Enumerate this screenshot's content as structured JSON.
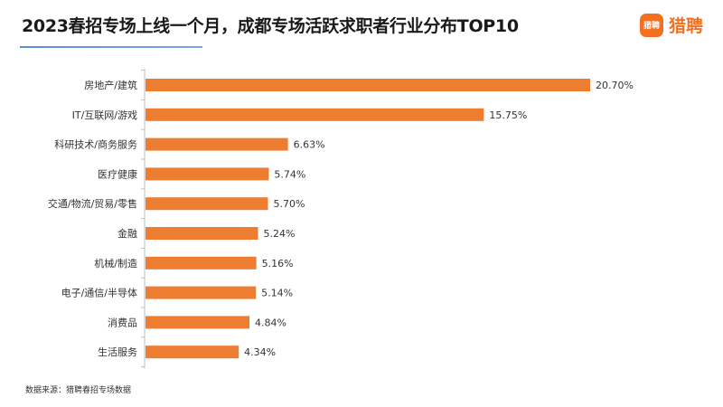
{
  "header": {
    "title": "2023春招专场上线一个月，成都专场活跃求职者行业分布TOP10"
  },
  "logo": {
    "badge": "猎聘",
    "text": "猎聘",
    "brand_color": "#f37021"
  },
  "footer": {
    "source": "数据来源：猎聘春招专场数据"
  },
  "chart_data": {
    "type": "bar",
    "orientation": "horizontal",
    "title": "2023春招专场上线一个月，成都专场活跃求职者行业分布TOP10",
    "xlabel": "",
    "ylabel": "",
    "categories": [
      "房地产/建筑",
      "IT/互联网/游戏",
      "科研技术/商务服务",
      "医疗健康",
      "交通/物流/贸易/零售",
      "金融",
      "机械/制造",
      "电子/通信/半导体",
      "消费品",
      "生活服务"
    ],
    "values": [
      20.7,
      15.75,
      6.63,
      5.74,
      5.7,
      5.24,
      5.16,
      5.14,
      4.84,
      4.34
    ],
    "value_labels": [
      "20.70%",
      "15.75%",
      "6.63%",
      "5.74%",
      "5.70%",
      "5.24%",
      "5.16%",
      "5.14%",
      "4.84%",
      "4.34%"
    ],
    "unit": "%",
    "xlim": [
      0,
      20.7
    ],
    "bar_color": "#ed7d31",
    "axis_color": "#bfbfbf",
    "grid": false,
    "legend": "none"
  }
}
